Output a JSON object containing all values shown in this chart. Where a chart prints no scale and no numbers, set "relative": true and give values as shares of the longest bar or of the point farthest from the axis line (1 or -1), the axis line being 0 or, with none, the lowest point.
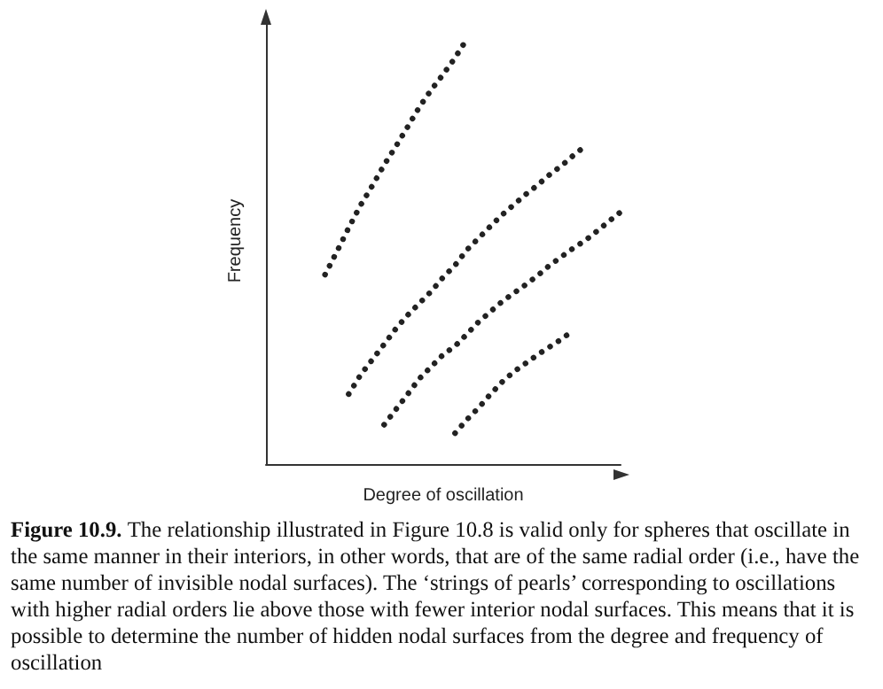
{
  "chart_data": {
    "type": "line",
    "xlabel": "Degree of oscillation",
    "ylabel": "Frequency",
    "relative": true,
    "marker": "none",
    "line_style": "dotted",
    "categories": [
      null,
      null,
      null,
      null,
      null,
      null,
      null,
      null,
      null,
      null,
      null,
      null,
      null,
      null,
      null,
      null,
      null,
      null,
      null,
      null,
      null,
      null,
      null,
      null,
      null,
      null,
      null,
      null,
      null,
      null,
      null
    ],
    "series": [
      {
        "color": "#222222",
        "values": [
          null,
          null,
          null,
          null,
          null,
          0.446,
          0.5,
          0.556,
          0.609,
          0.655,
          0.704,
          0.748,
          0.794,
          0.841,
          0.881,
          0.917,
          0.956,
          1.0,
          null,
          null,
          null,
          null,
          null,
          null,
          null,
          null,
          null,
          null,
          null,
          null,
          null
        ]
      },
      {
        "color": "#222222",
        "values": [
          null,
          null,
          null,
          null,
          null,
          null,
          null,
          0.165,
          0.21,
          0.246,
          0.282,
          0.319,
          0.351,
          0.379,
          0.407,
          0.44,
          0.468,
          0.504,
          0.532,
          0.56,
          0.587,
          0.611,
          0.635,
          0.657,
          0.681,
          0.702,
          0.726,
          0.748,
          null,
          null,
          null
        ]
      },
      {
        "color": "#222222",
        "values": [
          null,
          null,
          null,
          null,
          null,
          null,
          null,
          null,
          null,
          null,
          0.093,
          0.129,
          0.165,
          0.202,
          0.23,
          0.258,
          0.278,
          0.306,
          0.335,
          0.359,
          0.383,
          0.403,
          0.423,
          0.444,
          0.468,
          0.488,
          0.508,
          0.526,
          0.548,
          0.571,
          0.593
        ]
      },
      {
        "color": "#222222",
        "values": [
          null,
          null,
          null,
          null,
          null,
          null,
          null,
          null,
          null,
          null,
          null,
          null,
          null,
          null,
          null,
          null,
          0.073,
          0.105,
          0.133,
          0.165,
          0.194,
          0.218,
          0.238,
          0.258,
          0.276,
          0.294,
          0.315,
          null,
          null,
          null,
          null
        ]
      }
    ],
    "annotations": [
      "Figure 10.9. The relationship illustrated in Figure 10.8 is valid only for spheres that oscillate in the same manner in their interiors, in other words, that are of the same radial order (i.e., have the same number of invisible nodal surfaces). The ‘strings of pearls’ corresponding to oscillations with higher radial orders lie above those with fewer interior nodal surfaces. This means that it is possible to determine the number of hidden nodal surfaces from the degree and frequency of oscillation"
    ]
  }
}
